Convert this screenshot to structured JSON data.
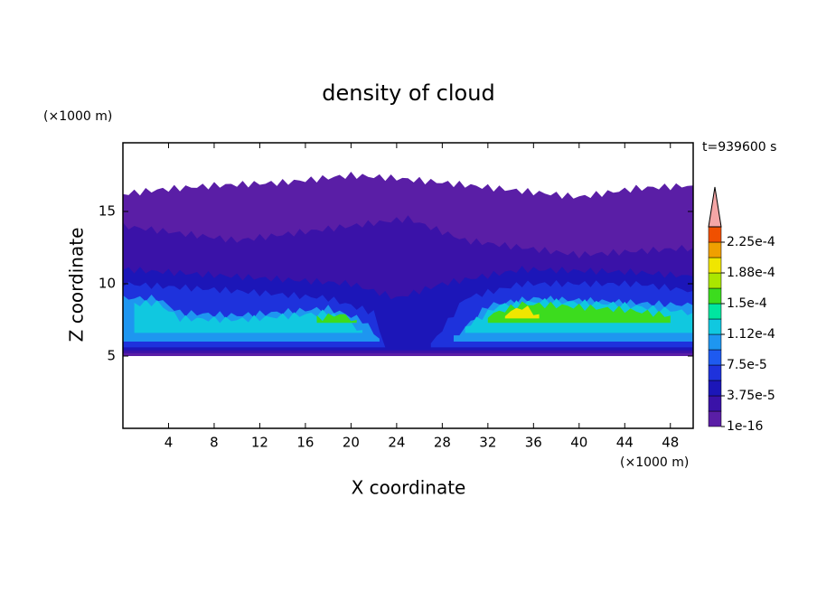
{
  "chart_data": {
    "type": "contour",
    "title": "density of cloud",
    "xlabel": "X coordinate",
    "ylabel": "Z coordinate",
    "x_unit": "(×1000 m)",
    "y_unit": "(×1000 m)",
    "annotation": "t=939600 s",
    "xlim": [
      0,
      50
    ],
    "ylim": [
      0,
      19.75
    ],
    "xticks": [
      4,
      8,
      12,
      16,
      20,
      24,
      28,
      32,
      36,
      40,
      44,
      48
    ],
    "yticks": [
      5,
      10,
      15
    ],
    "levels": [
      1e-16,
      1.875e-05,
      3.75e-05,
      5.625e-05,
      7.5e-05,
      9.375e-05,
      0.0001125,
      0.00013125,
      0.00015,
      0.00016875,
      0.0001875,
      0.00020625,
      0.000225,
      0.00024375
    ],
    "colors": [
      "#5a1ea6",
      "#3a12a8",
      "#1c16b8",
      "#1e32dc",
      "#1e5af0",
      "#1e96f0",
      "#10c8e0",
      "#00e6a0",
      "#3cdc1e",
      "#aae600",
      "#f0e600",
      "#f0a000",
      "#f05000",
      "#f01e1e"
    ],
    "extend_color": "#f4a6a6",
    "colorbar_ticks": [
      {
        "value": 1e-16,
        "label": "1e-16"
      },
      {
        "value": 3.75e-05,
        "label": "3.75e-5"
      },
      {
        "value": 7.5e-05,
        "label": "7.5e-5"
      },
      {
        "value": 0.0001125,
        "label": "1.12e-4"
      },
      {
        "value": 0.00015,
        "label": "1.5e-4"
      },
      {
        "value": 0.0001875,
        "label": "1.88e-4"
      },
      {
        "value": 0.000225,
        "label": "2.25e-4"
      }
    ]
  }
}
